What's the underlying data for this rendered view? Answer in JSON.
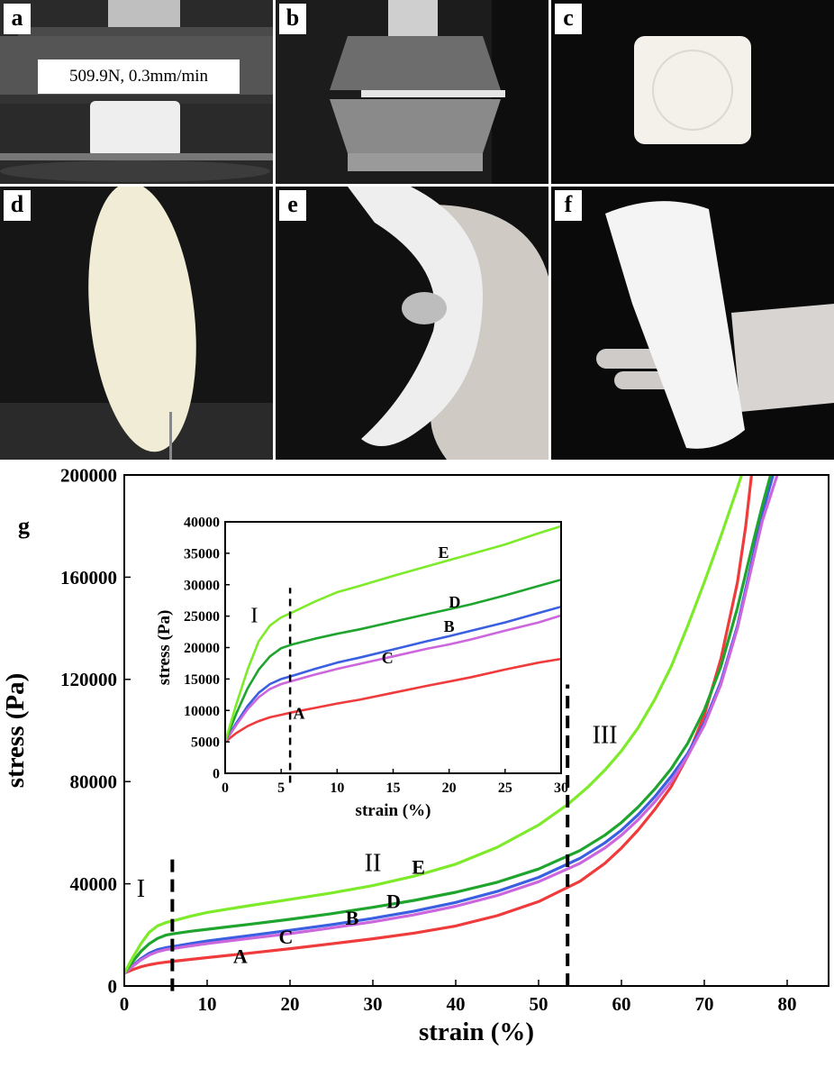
{
  "panels": [
    {
      "label": "a",
      "caption": "509.9N, 0.3mm/min"
    },
    {
      "label": "b"
    },
    {
      "label": "c"
    },
    {
      "label": "d"
    },
    {
      "label": "e"
    },
    {
      "label": "f"
    }
  ],
  "chart_data": [
    {
      "type": "line",
      "panel_label": "g",
      "xlabel": "strain (%)",
      "ylabel": "stress (Pa)",
      "xlim": [
        0,
        85
      ],
      "ylim": [
        0,
        200000
      ],
      "xticks": [
        0,
        10,
        20,
        30,
        40,
        50,
        60,
        70,
        80
      ],
      "yticks": [
        0,
        40000,
        80000,
        120000,
        160000,
        200000
      ],
      "grid": false,
      "colors": {
        "A": "#ef3b3b",
        "B": "#3a5fe0",
        "C": "#cc66dd",
        "D": "#1fa52e",
        "E": "#7dea2a"
      },
      "region_labels": [
        "I",
        "II",
        "III"
      ],
      "dividers": [
        5.8,
        53.5
      ],
      "series": [
        {
          "name": "A",
          "x": [
            0,
            1,
            2,
            3,
            4,
            5,
            6,
            8,
            10,
            15,
            20,
            25,
            30,
            35,
            40,
            45,
            50,
            55,
            58,
            60,
            62,
            64,
            66,
            68,
            70,
            72,
            74,
            75,
            75.7
          ],
          "y": [
            5000,
            6400,
            7500,
            8300,
            8900,
            9300,
            9700,
            10400,
            11100,
            12800,
            14600,
            16500,
            18500,
            20700,
            23500,
            27500,
            33000,
            41000,
            48000,
            54000,
            61000,
            69000,
            78000,
            90000,
            106000,
            128000,
            158000,
            180000,
            200000
          ]
        },
        {
          "name": "B",
          "x": [
            0,
            1,
            2,
            3,
            4,
            5,
            6,
            8,
            10,
            15,
            20,
            25,
            30,
            35,
            40,
            45,
            50,
            55,
            58,
            60,
            62,
            64,
            66,
            68,
            70,
            72,
            74,
            76,
            77,
            78.3
          ],
          "y": [
            5000,
            8000,
            10700,
            12800,
            14200,
            15000,
            15500,
            16600,
            17600,
            19700,
            21800,
            24000,
            26500,
            29300,
            32700,
            37000,
            42500,
            50000,
            56000,
            61000,
            67000,
            74000,
            82000,
            91000,
            103000,
            119000,
            141000,
            170000,
            185000,
            200000
          ]
        },
        {
          "name": "C",
          "x": [
            0,
            1,
            2,
            3,
            4,
            5,
            6,
            8,
            10,
            15,
            20,
            25,
            30,
            35,
            40,
            45,
            50,
            55,
            58,
            60,
            62,
            64,
            66,
            68,
            70,
            72,
            74,
            76,
            77,
            78.8
          ],
          "y": [
            5000,
            7700,
            10200,
            12100,
            13400,
            14200,
            14700,
            15700,
            16600,
            18600,
            20500,
            22700,
            25100,
            27900,
            31200,
            35400,
            40800,
            48000,
            54000,
            59000,
            65000,
            72000,
            80000,
            90000,
            102000,
            118000,
            140000,
            168000,
            182000,
            200000
          ]
        },
        {
          "name": "D",
          "x": [
            0,
            1,
            2,
            3,
            4,
            5,
            6,
            8,
            10,
            15,
            20,
            25,
            30,
            35,
            40,
            45,
            50,
            55,
            58,
            60,
            62,
            64,
            66,
            68,
            70,
            72,
            74,
            76,
            77,
            78
          ],
          "y": [
            5000,
            9500,
            13500,
            16500,
            18600,
            19900,
            20500,
            21400,
            22200,
            24100,
            26100,
            28300,
            30800,
            33500,
            36700,
            40600,
            45800,
            53000,
            59000,
            64000,
            70000,
            77000,
            85000,
            95000,
            108000,
            125000,
            148000,
            175000,
            188000,
            200000
          ]
        },
        {
          "name": "E",
          "x": [
            0,
            1,
            2,
            3,
            4,
            5,
            6,
            8,
            10,
            15,
            20,
            25,
            30,
            35,
            40,
            45,
            50,
            53.5,
            56,
            58,
            60,
            62,
            64,
            66,
            68,
            70,
            72,
            74,
            74.5
          ],
          "y": [
            5000,
            11000,
            16500,
            21000,
            23500,
            24800,
            25600,
            27300,
            28800,
            31400,
            33900,
            36400,
            39300,
            43000,
            47700,
            54300,
            63000,
            71000,
            78000,
            84500,
            92000,
            101000,
            112000,
            125000,
            141000,
            158000,
            176000,
            195000,
            200000
          ]
        }
      ],
      "annotations": [
        {
          "text": "A",
          "x": 14,
          "y": 9000
        },
        {
          "text": "C",
          "x": 19.5,
          "y": 16500
        },
        {
          "text": "B",
          "x": 27.5,
          "y": 24000
        },
        {
          "text": "D",
          "x": 32.5,
          "y": 30500
        },
        {
          "text": "E",
          "x": 35.5,
          "y": 44000
        },
        {
          "text": "I",
          "x": 2,
          "y": 35000
        },
        {
          "text": "II",
          "x": 30,
          "y": 45000
        },
        {
          "text": "III",
          "x": 58,
          "y": 95000
        }
      ]
    },
    {
      "type": "line",
      "inset": true,
      "xlabel": "strain (%)",
      "ylabel": "stress (Pa)",
      "xlim": [
        0,
        30
      ],
      "ylim": [
        0,
        40000
      ],
      "xticks": [
        0,
        5,
        10,
        15,
        20,
        25,
        30
      ],
      "yticks": [
        0,
        5000,
        10000,
        15000,
        20000,
        25000,
        30000,
        35000,
        40000
      ],
      "grid": false,
      "divider": 5.8,
      "series": [
        {
          "name": "A",
          "x": [
            0,
            1,
            2,
            3,
            4,
            5,
            6,
            8,
            10,
            12,
            15,
            18,
            20,
            22,
            25,
            28,
            30
          ],
          "y": [
            5000,
            6400,
            7500,
            8300,
            8900,
            9300,
            9700,
            10400,
            11100,
            11700,
            12800,
            13900,
            14600,
            15300,
            16500,
            17600,
            18200
          ]
        },
        {
          "name": "B",
          "x": [
            0,
            1,
            2,
            3,
            4,
            5,
            6,
            8,
            10,
            12,
            15,
            18,
            20,
            22,
            25,
            28,
            30
          ],
          "y": [
            5000,
            8000,
            10700,
            12800,
            14200,
            15000,
            15500,
            16600,
            17600,
            18400,
            19700,
            21000,
            21800,
            22700,
            24000,
            25500,
            26500
          ]
        },
        {
          "name": "C",
          "x": [
            0,
            1,
            2,
            3,
            4,
            5,
            6,
            8,
            10,
            12,
            15,
            18,
            20,
            22,
            25,
            28,
            30
          ],
          "y": [
            5000,
            7700,
            10200,
            12100,
            13400,
            14200,
            14700,
            15700,
            16600,
            17400,
            18600,
            19800,
            20500,
            21300,
            22700,
            24000,
            25100
          ]
        },
        {
          "name": "D",
          "x": [
            0,
            1,
            2,
            3,
            4,
            5,
            6,
            8,
            10,
            12,
            15,
            18,
            20,
            22,
            25,
            28,
            30
          ],
          "y": [
            5000,
            9500,
            13500,
            16500,
            18600,
            19900,
            20500,
            21400,
            22200,
            22900,
            24100,
            25300,
            26100,
            26900,
            28300,
            29800,
            30800
          ]
        },
        {
          "name": "E",
          "x": [
            0,
            1,
            2,
            3,
            4,
            5,
            6,
            8,
            10,
            12,
            15,
            18,
            20,
            22,
            25,
            28,
            30
          ],
          "y": [
            5000,
            11000,
            16500,
            21000,
            23500,
            24800,
            25600,
            27300,
            28800,
            29800,
            31400,
            32900,
            33900,
            34900,
            36400,
            38200,
            39300
          ]
        }
      ],
      "annotations": [
        {
          "text": "A",
          "x": 6.6,
          "y": 8700
        },
        {
          "text": "C",
          "x": 14.5,
          "y": 17500
        },
        {
          "text": "B",
          "x": 20,
          "y": 22500
        },
        {
          "text": "D",
          "x": 20.5,
          "y": 26400
        },
        {
          "text": "E",
          "x": 19.5,
          "y": 34300
        },
        {
          "text": "I",
          "x": 2.6,
          "y": 24000
        }
      ]
    }
  ]
}
